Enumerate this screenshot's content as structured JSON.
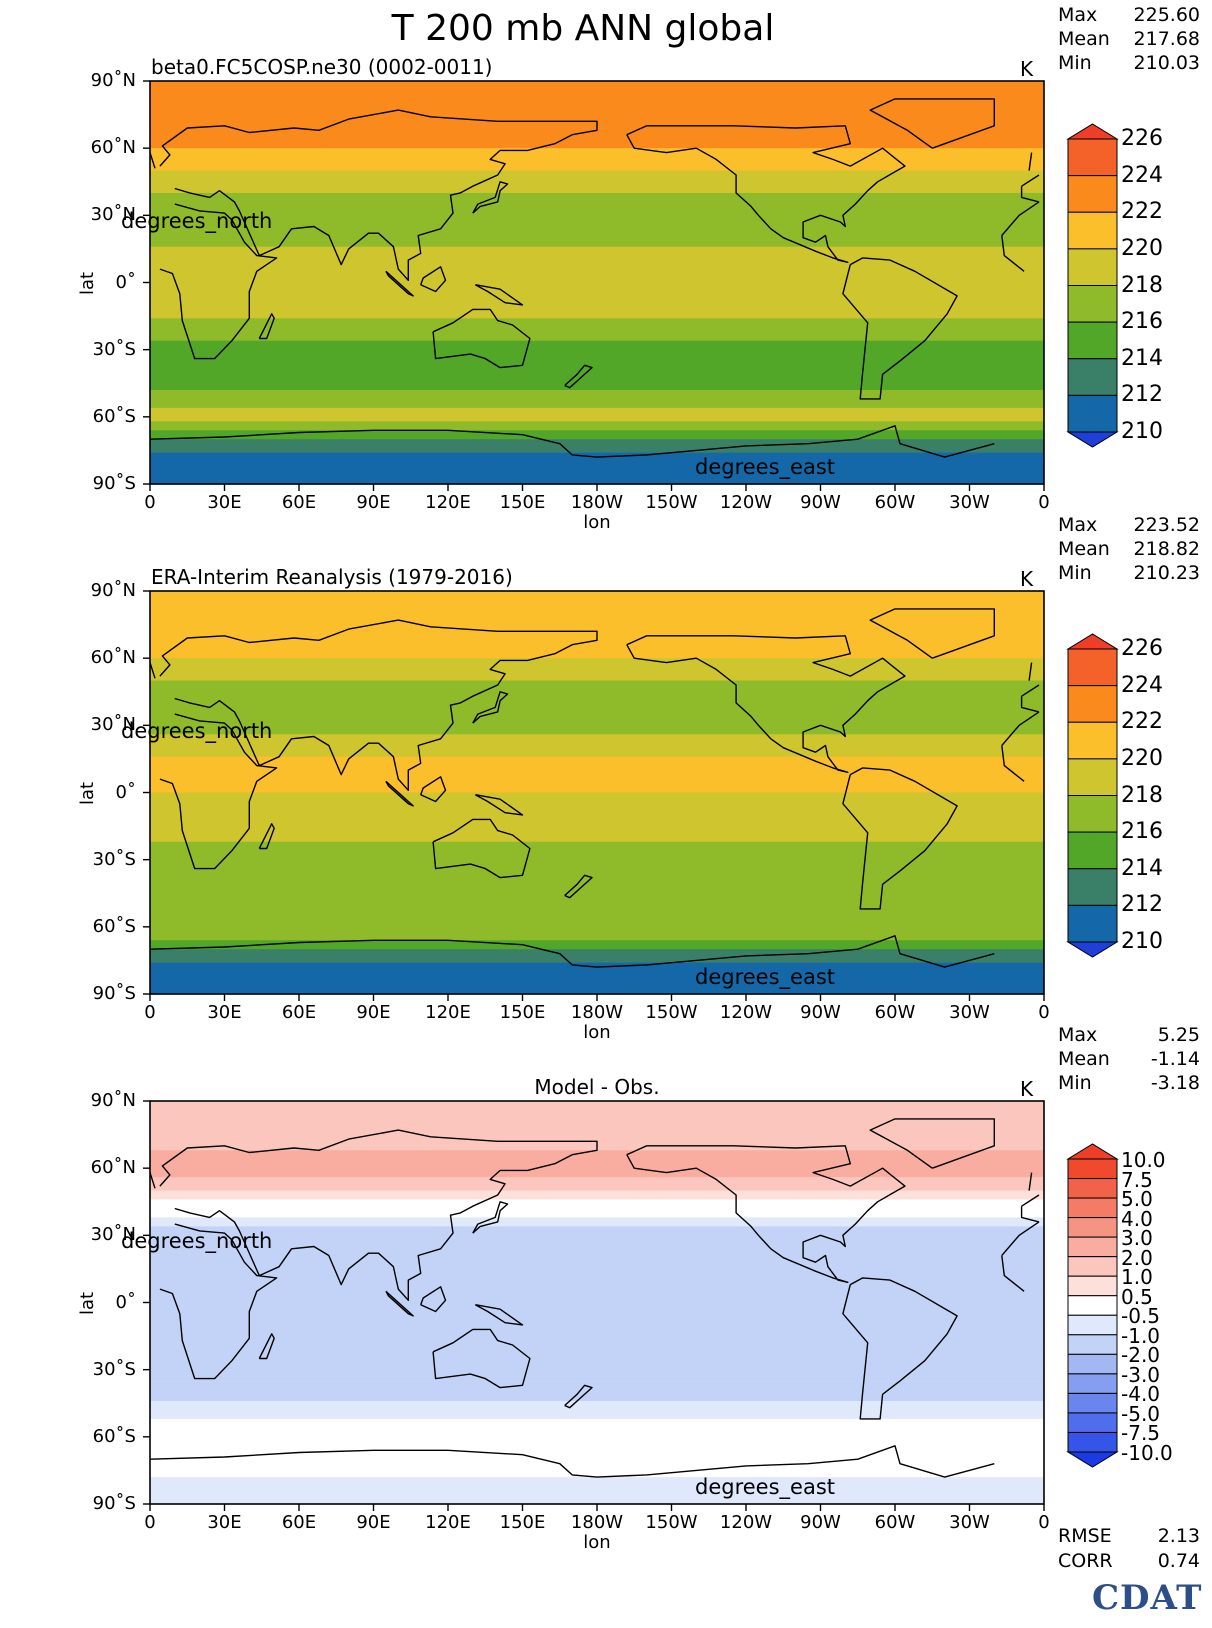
{
  "title": "T 200 mb ANN global",
  "panels": [
    {
      "subtitle": "beta0.FC5COSP.ne30 (0002-0011)",
      "units": "K",
      "stats": [
        [
          "Max",
          "225.60"
        ],
        [
          "Mean",
          "217.68"
        ],
        [
          "Min",
          "210.03"
        ]
      ],
      "colorbar": {
        "labels": [
          "226",
          "224",
          "222",
          "220",
          "218",
          "216",
          "214",
          "212",
          "210"
        ],
        "colors": [
          "#f4622a",
          "#fa8a1c",
          "#fbbf2c",
          "#cfc62f",
          "#8fba2a",
          "#52a628",
          "#3a8068",
          "#1468a8"
        ],
        "under_color": "#1f3fd8",
        "over_color": "#ee3d28"
      }
    },
    {
      "subtitle": "ERA-Interim Reanalysis (1979-2016)",
      "units": "K",
      "stats": [
        [
          "Max",
          "223.52"
        ],
        [
          "Mean",
          "218.82"
        ],
        [
          "Min",
          "210.23"
        ]
      ],
      "colorbar": {
        "labels": [
          "226",
          "224",
          "222",
          "220",
          "218",
          "216",
          "214",
          "212",
          "210"
        ],
        "colors": [
          "#f4622a",
          "#fa8a1c",
          "#fbbf2c",
          "#cfc62f",
          "#8fba2a",
          "#52a628",
          "#3a8068",
          "#1468a8"
        ],
        "under_color": "#1f3fd8",
        "over_color": "#ee3d28"
      }
    },
    {
      "subtitle": "Model - Obs.",
      "units": "K",
      "stats": [
        [
          "Max",
          "5.25"
        ],
        [
          "Mean",
          "-1.14"
        ],
        [
          "Min",
          "-3.18"
        ]
      ],
      "colorbar": {
        "labels": [
          "10.0",
          "7.5",
          "5.0",
          "4.0",
          "3.0",
          "2.0",
          "1.0",
          "0.5",
          "-0.5",
          "-1.0",
          "-2.0",
          "-3.0",
          "-4.0",
          "-5.0",
          "-7.5",
          "-10.0"
        ],
        "colors": [
          "#ef4a2e",
          "#f2624a",
          "#f47b65",
          "#f69483",
          "#f8ada0",
          "#fbc6bd",
          "#fde0da",
          "#ffffff",
          "#e0e8fb",
          "#c3d2f7",
          "#a3b7f3",
          "#869ef0",
          "#6a86ee",
          "#506deb",
          "#3554e8"
        ],
        "under_color": "#1b3ae6",
        "over_color": "#ee3d28"
      }
    }
  ],
  "footer_stats": [
    [
      "RMSE",
      "2.13"
    ],
    [
      "CORR",
      "0.74"
    ]
  ],
  "axes": {
    "lat_ticks": [
      "90˚N",
      "60˚N",
      "30˚N",
      "0˚",
      "30˚S",
      "60˚S",
      "90˚S"
    ],
    "lon_ticks": [
      "0",
      "30E",
      "60E",
      "90E",
      "120E",
      "150E",
      "180W",
      "150W",
      "120W",
      "90W",
      "60W",
      "30W",
      "0"
    ],
    "xlabel": "lon",
    "ylabel": "lat",
    "lat_units_label": "degrees_north",
    "lon_units_label": "degrees_east"
  },
  "logo": "CDAT",
  "chart_data": [
    {
      "type": "heatmap",
      "title": "beta0.FC5COSP.ne30 (0002-0011)",
      "xlabel": "lon",
      "ylabel": "lat",
      "xlim": [
        0,
        360
      ],
      "ylim": [
        -90,
        90
      ],
      "units": "K",
      "levels": [
        210,
        212,
        214,
        216,
        218,
        220,
        222,
        224,
        226
      ],
      "stats": {
        "max": 225.6,
        "mean": 217.68,
        "min": 210.03
      },
      "zonal_profile": {
        "lat": [
          90,
          75,
          60,
          45,
          30,
          15,
          0,
          -15,
          -30,
          -45,
          -60,
          -70,
          -80,
          -90
        ],
        "value": [
          223,
          223,
          222,
          219,
          216,
          218,
          218,
          218,
          215,
          215,
          219,
          214,
          210,
          210
        ]
      }
    },
    {
      "type": "heatmap",
      "title": "ERA-Interim Reanalysis (1979-2016)",
      "xlabel": "lon",
      "ylabel": "lat",
      "xlim": [
        0,
        360
      ],
      "ylim": [
        -90,
        90
      ],
      "units": "K",
      "levels": [
        210,
        212,
        214,
        216,
        218,
        220,
        222,
        224,
        226
      ],
      "stats": {
        "max": 223.52,
        "mean": 218.82,
        "min": 210.23
      },
      "zonal_profile": {
        "lat": [
          90,
          75,
          60,
          45,
          30,
          15,
          0,
          -15,
          -30,
          -45,
          -60,
          -70,
          -80,
          -90
        ],
        "value": [
          221,
          221,
          220,
          217,
          217,
          220,
          220,
          219,
          217,
          217,
          218,
          214,
          210,
          210
        ]
      }
    },
    {
      "type": "heatmap",
      "title": "Model - Obs.",
      "xlabel": "lon",
      "ylabel": "lat",
      "xlim": [
        0,
        360
      ],
      "ylim": [
        -90,
        90
      ],
      "units": "K",
      "levels": [
        -10,
        -7.5,
        -5,
        -4,
        -3,
        -2,
        -1,
        -0.5,
        0.5,
        1,
        2,
        3,
        4,
        5,
        7.5,
        10
      ],
      "stats": {
        "max": 5.25,
        "mean": -1.14,
        "min": -3.18,
        "rmse": 2.13,
        "corr": 0.74
      },
      "zonal_profile": {
        "lat": [
          90,
          75,
          60,
          45,
          30,
          15,
          0,
          -15,
          -30,
          -45,
          -60,
          -70,
          -80,
          -90
        ],
        "value": [
          1.5,
          1.5,
          2.5,
          0.3,
          -1.5,
          -2,
          -2,
          -1.5,
          -1.5,
          -1,
          0.2,
          0.2,
          -0.7,
          -0.7
        ]
      }
    }
  ]
}
